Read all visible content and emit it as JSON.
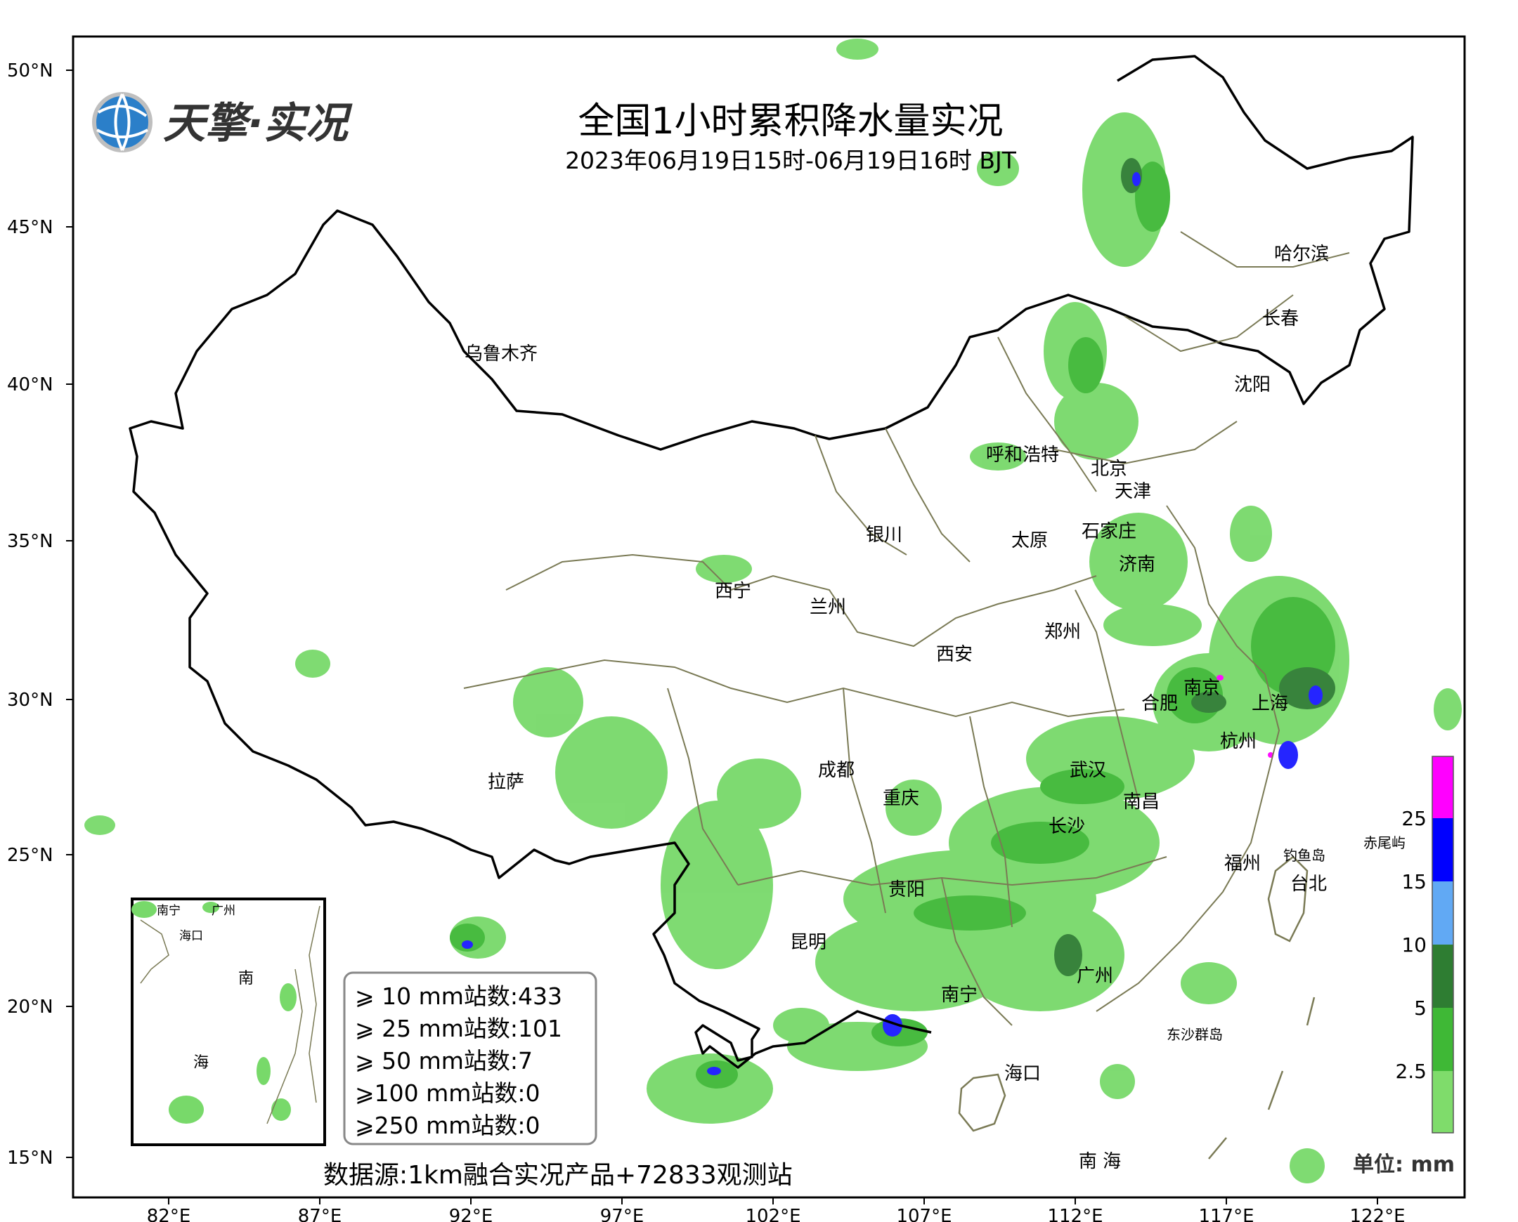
{
  "title": "全国1小时累积降水量实况",
  "subtitle": "2023年06月19日15时-06月19日16时 BJT",
  "logo": {
    "text": "天擎·实况",
    "icon": "globe-icon"
  },
  "axes": {
    "lat_labels": [
      "50°N",
      "45°N",
      "40°N",
      "35°N",
      "30°N",
      "25°N",
      "20°N",
      "15°N"
    ],
    "lon_labels": [
      "82°E",
      "87°E",
      "92°E",
      "97°E",
      "102°E",
      "107°E",
      "112°E",
      "117°E",
      "122°E"
    ]
  },
  "cities": [
    {
      "name": "哈尔滨"
    },
    {
      "name": "长春"
    },
    {
      "name": "沈阳"
    },
    {
      "name": "乌鲁木齐"
    },
    {
      "name": "呼和浩特"
    },
    {
      "name": "北京"
    },
    {
      "name": "天津"
    },
    {
      "name": "银川"
    },
    {
      "name": "太原"
    },
    {
      "name": "石家庄"
    },
    {
      "name": "济南"
    },
    {
      "name": "西宁"
    },
    {
      "name": "兰州"
    },
    {
      "name": "郑州"
    },
    {
      "name": "西安"
    },
    {
      "name": "南京"
    },
    {
      "name": "合肥"
    },
    {
      "name": "上海"
    },
    {
      "name": "杭州"
    },
    {
      "name": "拉萨"
    },
    {
      "name": "成都"
    },
    {
      "name": "武汉"
    },
    {
      "name": "重庆"
    },
    {
      "name": "南昌"
    },
    {
      "name": "长沙"
    },
    {
      "name": "福州"
    },
    {
      "name": "钓鱼岛"
    },
    {
      "name": "赤尾屿"
    },
    {
      "name": "台北"
    },
    {
      "name": "贵阳"
    },
    {
      "name": "昆明"
    },
    {
      "name": "广州"
    },
    {
      "name": "南宁"
    },
    {
      "name": "海口"
    },
    {
      "name": "东沙群岛"
    },
    {
      "name": "南 海"
    }
  ],
  "inset": {
    "labels": [
      "南宁",
      "广州",
      "海口",
      "南",
      "海"
    ]
  },
  "stats": {
    "rows": [
      {
        "text": "⩾ 10 mm站数:433"
      },
      {
        "text": "⩾ 25 mm站数:101"
      },
      {
        "text": "⩾ 50 mm站数:7"
      },
      {
        "text": "⩾100 mm站数:0"
      },
      {
        "text": "⩾250 mm站数:0"
      }
    ]
  },
  "source": "数据源:1km融合实况产品+72833观测站",
  "legend": {
    "unit": "单位: mm",
    "tick_labels": [
      "2.5",
      "5",
      "10",
      "15",
      "25"
    ],
    "colors": [
      "#7fdc6b",
      "#3fb836",
      "#2e7d32",
      "#61a9f4",
      "#0000ff",
      "#ff00ff"
    ]
  },
  "colors": {
    "rain_light": "#78d96a",
    "rain_mid": "#3fb836",
    "rain_dark": "#2e7d32",
    "rain_blue": "#61a9f4",
    "rain_deep": "#1a1aff",
    "rain_magenta": "#ff00ff",
    "border": "#000000",
    "province": "#7a7a55"
  }
}
